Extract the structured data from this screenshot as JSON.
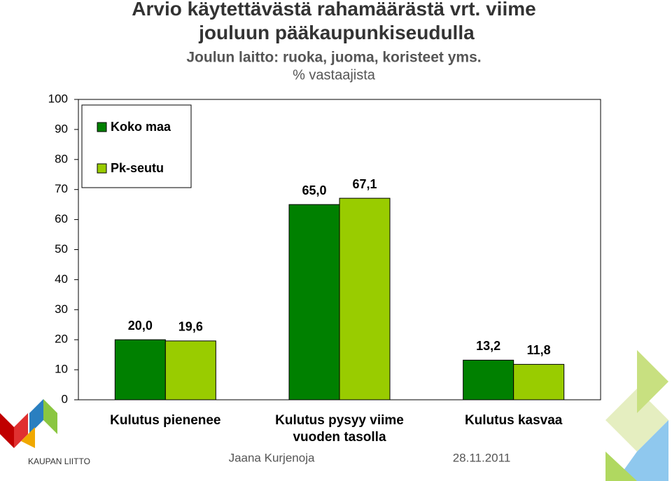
{
  "chart_data": {
    "type": "bar",
    "title": "Arvio käytettävästä rahamäärästä vrt. viime jouluun pääkaupunkiseudulla",
    "subtitle": "Joulun laitto: ruoka, juoma, koristeet yms.",
    "y_label": "% vastaajista",
    "categories": [
      "Kulutus pienenee",
      "Kulutus pysyy viime vuoden tasolla",
      "Kulutus kasvaa"
    ],
    "series": [
      {
        "name": "Koko maa",
        "color": "#008000",
        "values": [
          20.0,
          65.0,
          13.2
        ],
        "value_labels": [
          "20,0",
          "65,0",
          "13,2"
        ]
      },
      {
        "name": "Pk-seutu",
        "color": "#99cc00",
        "values": [
          19.6,
          67.1,
          11.8
        ],
        "value_labels": [
          "19,6",
          "67,1",
          "11,8"
        ]
      }
    ],
    "ylim": [
      0,
      100
    ],
    "yticks": [
      0,
      10,
      20,
      30,
      40,
      50,
      60,
      70,
      80,
      90,
      100
    ],
    "grid": false,
    "legend": "top-left"
  },
  "footer": {
    "author": "Jaana Kurjenoja",
    "date": "28.11.2011",
    "logo": "KAUPAN LIITTO"
  }
}
